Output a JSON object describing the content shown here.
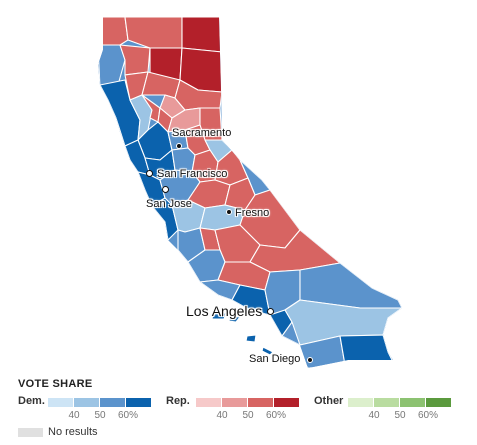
{
  "map": {
    "cities": [
      {
        "id": "sacramento",
        "name": "Sacramento",
        "size": "sm"
      },
      {
        "id": "san-francisco",
        "name": "San Francisco",
        "size": "sm"
      },
      {
        "id": "san-jose",
        "name": "San Jose",
        "size": "sm"
      },
      {
        "id": "fresno",
        "name": "Fresno",
        "size": "sm"
      },
      {
        "id": "los-angeles",
        "name": "Los Angeles",
        "size": "lg"
      },
      {
        "id": "san-diego",
        "name": "San Diego",
        "size": "sm"
      }
    ]
  },
  "legend": {
    "title": "VOTE SHARE",
    "groups": [
      {
        "label": "Dem.",
        "colors": [
          "#cde4f5",
          "#9cc4e4",
          "#5b93cc",
          "#0b62ad"
        ],
        "ticks": [
          "40",
          "50",
          "60%"
        ]
      },
      {
        "label": "Rep.",
        "colors": [
          "#f6c9c9",
          "#e89a9a",
          "#d76462",
          "#b3202a"
        ],
        "ticks": [
          "40",
          "50",
          "60%"
        ]
      },
      {
        "label": "Other",
        "colors": [
          "#dcefcc",
          "#b9dca0",
          "#8cc271",
          "#5b9a3e"
        ],
        "ticks": [
          "40",
          "50",
          "60%"
        ]
      }
    ],
    "no_results": {
      "label": "No results",
      "color": "#e0e0e0"
    }
  }
}
